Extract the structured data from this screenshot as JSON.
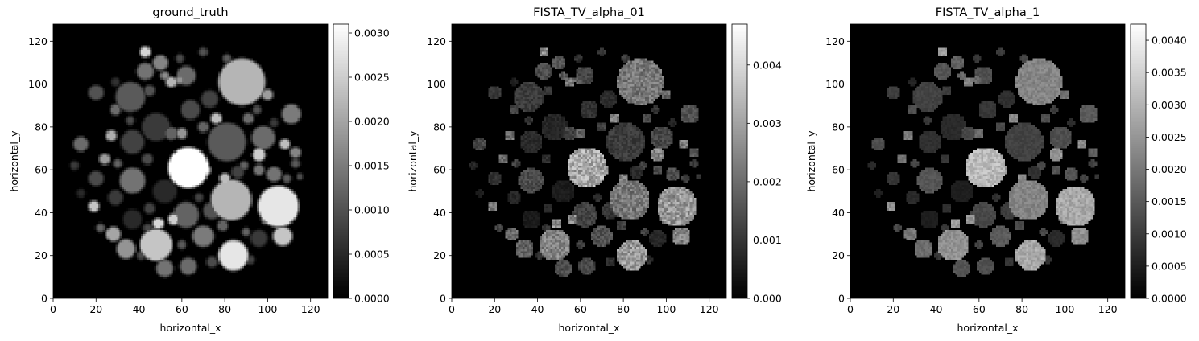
{
  "chart_data": [
    {
      "type": "heatmap",
      "title": "ground_truth",
      "xlabel": "horizontal_x",
      "ylabel": "horizontal_y",
      "xlim": [
        0,
        128
      ],
      "ylim": [
        0,
        128
      ],
      "xticks": [
        "0",
        "20",
        "40",
        "60",
        "80",
        "100",
        "120"
      ],
      "yticks": [
        "0",
        "20",
        "40",
        "60",
        "80",
        "100",
        "120"
      ],
      "colormap": "gray",
      "colorbar": {
        "min": 0.0,
        "max": 0.0031,
        "ticks": [
          "0.0000",
          "0.0005",
          "0.0010",
          "0.0015",
          "0.0020",
          "0.0025",
          "0.0030"
        ],
        "tick_values": [
          0.0,
          0.0005,
          0.001,
          0.0015,
          0.002,
          0.0025,
          0.003
        ]
      },
      "noise": 0,
      "blur": true
    },
    {
      "type": "heatmap",
      "title": "FISTA_TV_alpha_01",
      "xlabel": "horizontal_x",
      "ylabel": "horizontal_y",
      "xlim": [
        0,
        128
      ],
      "ylim": [
        0,
        128
      ],
      "xticks": [
        "0",
        "20",
        "40",
        "60",
        "80",
        "100",
        "120"
      ],
      "yticks": [
        "0",
        "20",
        "40",
        "60",
        "80",
        "100",
        "120"
      ],
      "colormap": "gray",
      "colorbar": {
        "min": 0.0,
        "max": 0.0047,
        "ticks": [
          "0.000",
          "0.001",
          "0.002",
          "0.003",
          "0.004"
        ],
        "tick_values": [
          0.0,
          0.001,
          0.002,
          0.003,
          0.004
        ]
      },
      "noise": 0.55,
      "blur": false
    },
    {
      "type": "heatmap",
      "title": "FISTA_TV_alpha_1",
      "xlabel": "horizontal_x",
      "ylabel": "horizontal_y",
      "xlim": [
        0,
        128
      ],
      "ylim": [
        0,
        128
      ],
      "xticks": [
        "0",
        "20",
        "40",
        "60",
        "80",
        "100",
        "120"
      ],
      "yticks": [
        "0",
        "20",
        "40",
        "60",
        "80",
        "100",
        "120"
      ],
      "colormap": "gray",
      "colorbar": {
        "min": 0.0,
        "max": 0.00425,
        "ticks": [
          "0.0000",
          "0.0005",
          "0.0010",
          "0.0015",
          "0.0020",
          "0.0025",
          "0.0030",
          "0.0035",
          "0.0040"
        ],
        "tick_values": [
          0.0,
          0.0005,
          0.001,
          0.0015,
          0.002,
          0.0025,
          0.003,
          0.0035,
          0.004
        ]
      },
      "noise": 0.25,
      "blur": false
    }
  ],
  "phantom_discs": [
    {
      "cx": 88,
      "cy": 101,
      "r": 11,
      "v": 0.0022
    },
    {
      "cx": 63,
      "cy": 61,
      "r": 9.5,
      "v": 0.0031
    },
    {
      "cx": 83,
      "cy": 46,
      "r": 9.5,
      "v": 0.0022
    },
    {
      "cx": 105,
      "cy": 43,
      "r": 9.5,
      "v": 0.0028
    },
    {
      "cx": 81,
      "cy": 73,
      "r": 9,
      "v": 0.0011
    },
    {
      "cx": 48,
      "cy": 25,
      "r": 7.5,
      "v": 0.0024
    },
    {
      "cx": 84,
      "cy": 20,
      "r": 7,
      "v": 0.0028
    },
    {
      "cx": 36,
      "cy": 94,
      "r": 7,
      "v": 0.0011
    },
    {
      "cx": 48,
      "cy": 80,
      "r": 6.5,
      "v": 0.0007
    },
    {
      "cx": 37,
      "cy": 55,
      "r": 6,
      "v": 0.0014
    },
    {
      "cx": 52,
      "cy": 50,
      "r": 5.5,
      "v": 0.0005
    },
    {
      "cx": 37,
      "cy": 73,
      "r": 5.5,
      "v": 0.0008
    },
    {
      "cx": 62,
      "cy": 39,
      "r": 6,
      "v": 0.0012
    },
    {
      "cx": 98,
      "cy": 75,
      "r": 5.5,
      "v": 0.0013
    },
    {
      "cx": 73,
      "cy": 93,
      "r": 4,
      "v": 0.0008
    },
    {
      "cx": 64,
      "cy": 88,
      "r": 4.5,
      "v": 0.0009
    },
    {
      "cx": 70,
      "cy": 29,
      "r": 5,
      "v": 0.0015
    },
    {
      "cx": 34,
      "cy": 23,
      "r": 4.5,
      "v": 0.0018
    },
    {
      "cx": 37,
      "cy": 37,
      "r": 4.5,
      "v": 0.0005
    },
    {
      "cx": 52,
      "cy": 14,
      "r": 4,
      "v": 0.0014
    },
    {
      "cx": 63,
      "cy": 15,
      "r": 4,
      "v": 0.0013
    },
    {
      "cx": 103,
      "cy": 58,
      "r": 3.5,
      "v": 0.0014
    },
    {
      "cx": 107,
      "cy": 29,
      "r": 4.5,
      "v": 0.0024
    },
    {
      "cx": 74,
      "cy": 41,
      "r": 4,
      "v": 0.001
    },
    {
      "cx": 96,
      "cy": 28,
      "r": 4,
      "v": 0.0007
    },
    {
      "cx": 111,
      "cy": 86,
      "r": 4.5,
      "v": 0.0015
    },
    {
      "cx": 62,
      "cy": 104,
      "r": 4.5,
      "v": 0.0013
    },
    {
      "cx": 43,
      "cy": 106,
      "r": 4,
      "v": 0.0014
    },
    {
      "cx": 50,
      "cy": 110,
      "r": 3.5,
      "v": 0.0016
    },
    {
      "cx": 20,
      "cy": 96,
      "r": 3.5,
      "v": 0.001
    },
    {
      "cx": 29,
      "cy": 47,
      "r": 3.5,
      "v": 0.0007
    },
    {
      "cx": 13,
      "cy": 72,
      "r": 3.5,
      "v": 0.0013
    },
    {
      "cx": 20,
      "cy": 56,
      "r": 3.5,
      "v": 0.0009
    },
    {
      "cx": 28,
      "cy": 30,
      "r": 3.5,
      "v": 0.002
    },
    {
      "cx": 56,
      "cy": 37,
      "r": 2.5,
      "v": 0.0025
    },
    {
      "cx": 71,
      "cy": 60,
      "r": 2.5,
      "v": 0.0025
    },
    {
      "cx": 96,
      "cy": 60,
      "r": 2.5,
      "v": 0.0014
    },
    {
      "cx": 96,
      "cy": 67,
      "r": 3,
      "v": 0.0025
    },
    {
      "cx": 108,
      "cy": 72,
      "r": 2.5,
      "v": 0.0023
    },
    {
      "cx": 86,
      "cy": 59,
      "r": 3,
      "v": 0.0008
    },
    {
      "cx": 70,
      "cy": 80,
      "r": 2.5,
      "v": 0.0012
    },
    {
      "cx": 24,
      "cy": 65,
      "r": 2.5,
      "v": 0.0019
    },
    {
      "cx": 27,
      "cy": 76,
      "r": 2.5,
      "v": 0.0021
    },
    {
      "cx": 29,
      "cy": 88,
      "r": 2.5,
      "v": 0.0013
    },
    {
      "cx": 19,
      "cy": 43,
      "r": 2.5,
      "v": 0.0024
    },
    {
      "cx": 43,
      "cy": 115,
      "r": 2.5,
      "v": 0.0026
    },
    {
      "cx": 55,
      "cy": 101,
      "r": 2.5,
      "v": 0.0022
    },
    {
      "cx": 59,
      "cy": 102,
      "r": 2,
      "v": 0.0018
    },
    {
      "cx": 76,
      "cy": 84,
      "r": 2.5,
      "v": 0.0023
    },
    {
      "cx": 58,
      "cy": 65,
      "r": 2.5,
      "v": 0.0012
    },
    {
      "cx": 44,
      "cy": 65,
      "r": 2.5,
      "v": 0.0009
    },
    {
      "cx": 55,
      "cy": 77,
      "r": 3,
      "v": 0.0012
    },
    {
      "cx": 60,
      "cy": 77,
      "r": 2.5,
      "v": 0.0018
    },
    {
      "cx": 91,
      "cy": 84,
      "r": 2.5,
      "v": 0.0013
    },
    {
      "cx": 100,
      "cy": 95,
      "r": 2.5,
      "v": 0.0019
    },
    {
      "cx": 95,
      "cy": 88,
      "r": 2,
      "v": 0.001
    },
    {
      "cx": 113,
      "cy": 68,
      "r": 2.5,
      "v": 0.0016
    },
    {
      "cx": 113,
      "cy": 63,
      "r": 2,
      "v": 0.0011
    },
    {
      "cx": 80,
      "cy": 56,
      "r": 2.5,
      "v": 0.0023
    },
    {
      "cx": 89,
      "cy": 62,
      "r": 2,
      "v": 0.0012
    },
    {
      "cx": 45,
      "cy": 42,
      "r": 2.5,
      "v": 0.0008
    },
    {
      "cx": 49,
      "cy": 35,
      "r": 2.5,
      "v": 0.0026
    },
    {
      "cx": 74,
      "cy": 17,
      "r": 2.5,
      "v": 0.0009
    },
    {
      "cx": 92,
      "cy": 18,
      "r": 2,
      "v": 0.0008
    },
    {
      "cx": 79,
      "cy": 34,
      "r": 2.5,
      "v": 0.0012
    },
    {
      "cx": 99,
      "cy": 37,
      "r": 2,
      "v": 0.0017
    },
    {
      "cx": 45,
      "cy": 97,
      "r": 2.5,
      "v": 0.001
    },
    {
      "cx": 70,
      "cy": 115,
      "r": 2,
      "v": 0.001
    },
    {
      "cx": 81,
      "cy": 112,
      "r": 2,
      "v": 0.0011
    },
    {
      "cx": 59,
      "cy": 112,
      "r": 2,
      "v": 0.0009
    },
    {
      "cx": 52,
      "cy": 104,
      "r": 2,
      "v": 0.0017
    },
    {
      "cx": 29,
      "cy": 101,
      "r": 2,
      "v": 0.0006
    },
    {
      "cx": 36,
      "cy": 83,
      "r": 2,
      "v": 0.0009
    },
    {
      "cx": 30,
      "cy": 63,
      "r": 2,
      "v": 0.0012
    },
    {
      "cx": 10,
      "cy": 62,
      "r": 2,
      "v": 0.0007
    },
    {
      "cx": 13,
      "cy": 49,
      "r": 2,
      "v": 0.0005
    },
    {
      "cx": 22,
      "cy": 33,
      "r": 2,
      "v": 0.0012
    },
    {
      "cx": 44,
      "cy": 33,
      "r": 2,
      "v": 0.0009
    },
    {
      "cx": 100,
      "cy": 49,
      "r": 2,
      "v": 0.0015
    },
    {
      "cx": 109,
      "cy": 56,
      "r": 2,
      "v": 0.0011
    },
    {
      "cx": 115,
      "cy": 57,
      "r": 1.5,
      "v": 0.0009
    },
    {
      "cx": 103,
      "cy": 82,
      "r": 2,
      "v": 0.0007
    },
    {
      "cx": 66,
      "cy": 54,
      "r": 2,
      "v": 0.001
    },
    {
      "cx": 68,
      "cy": 47,
      "r": 2,
      "v": 0.0008
    },
    {
      "cx": 90,
      "cy": 31,
      "r": 2,
      "v": 0.0012
    },
    {
      "cx": 60,
      "cy": 25,
      "r": 2,
      "v": 0.0011
    },
    {
      "cx": 41,
      "cy": 20,
      "r": 2,
      "v": 0.0009
    }
  ]
}
